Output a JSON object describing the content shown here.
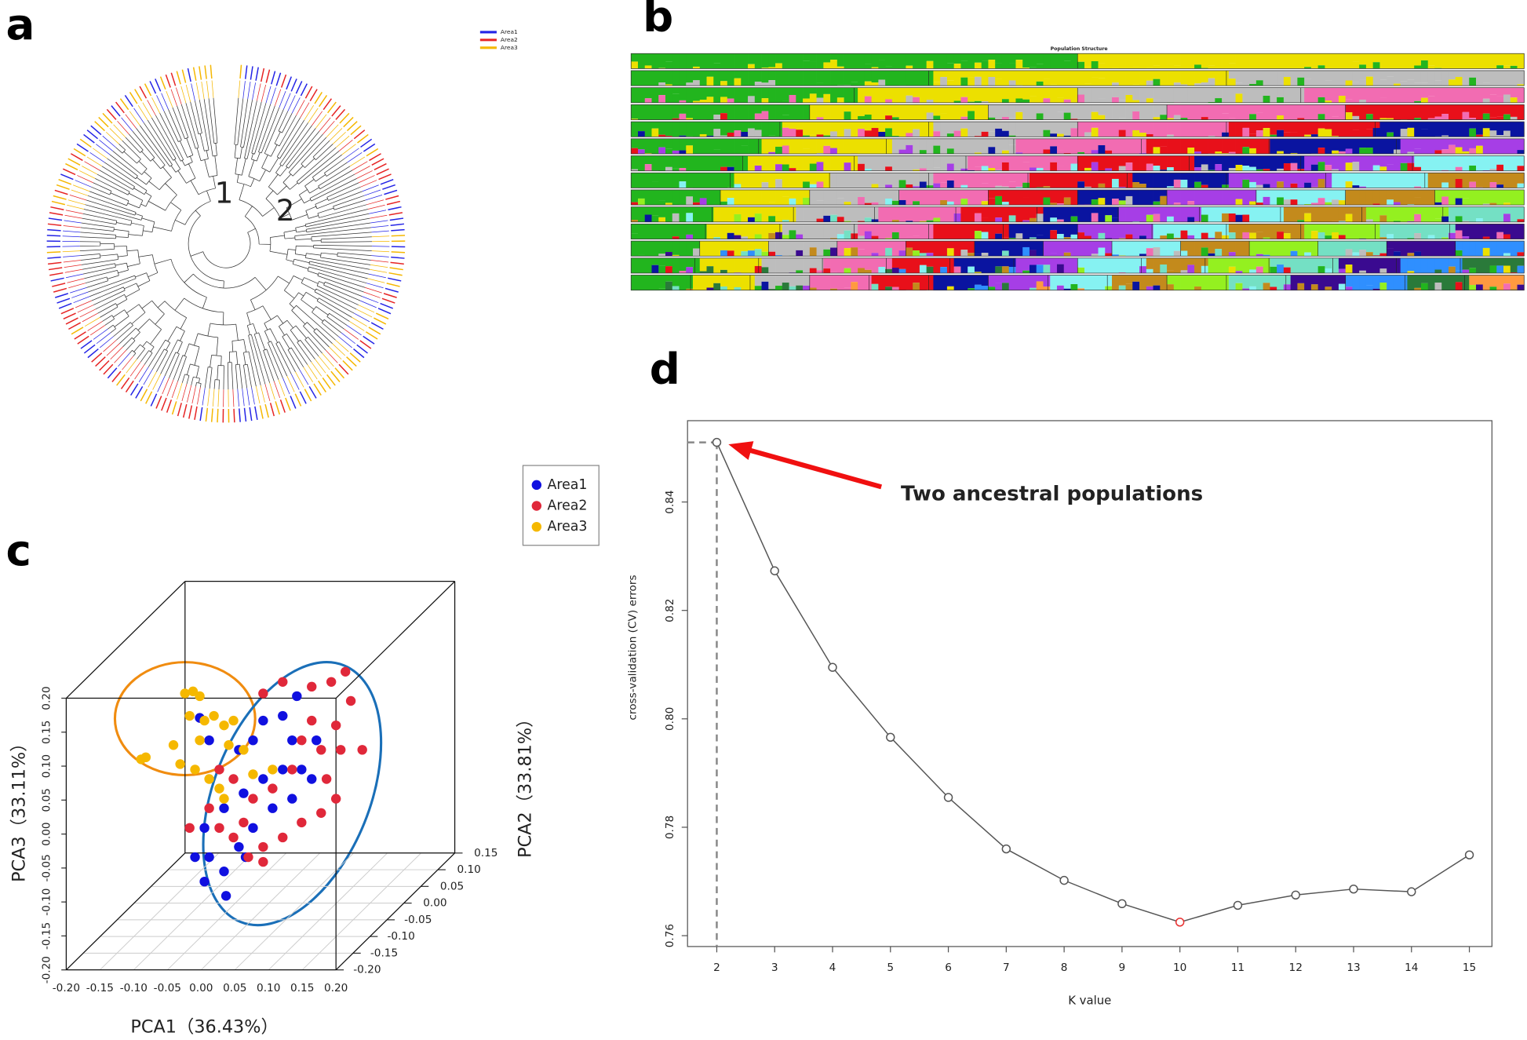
{
  "chart_data": [
    {
      "type": "dendrogram",
      "panel_label": "a",
      "cluster_labels": [
        "1",
        "2"
      ],
      "legend": [
        {
          "name": "Area1",
          "color": "#2323e6"
        },
        {
          "name": "Area2",
          "color": "#e62323"
        },
        {
          "name": "Area3",
          "color": "#f5b700"
        }
      ]
    },
    {
      "type": "structure",
      "panel_label": "b",
      "title": "Population Structure",
      "palette": [
        "#22b51e",
        "#ece000",
        "#bdbdbd",
        "#f26cb2",
        "#e8101a",
        "#0a14a0",
        "#a63ee6",
        "#86f2f2",
        "#c38a1c",
        "#94f020",
        "#74e0c4",
        "#3a0a90",
        "#2f8fff",
        "#2a7a3a",
        "#ff9a40"
      ]
    },
    {
      "type": "scatter3d",
      "panel_label": "c",
      "xlabel": "PCA1（36.43%）",
      "ylabel": "PCA3（33.11%）",
      "zlabel": "PCA2（33.81%）",
      "xlim": [
        -0.2,
        0.2
      ],
      "ylim": [
        -0.2,
        0.2
      ],
      "zlim": [
        -0.2,
        0.15
      ],
      "xticks": [
        {
          "value": -0.2,
          "label": "-0.20"
        },
        -0.15,
        {
          "value": -0.1,
          "label": "-0.10"
        },
        -0.05,
        {
          "value": 0,
          "label": "0.00"
        },
        0.05,
        {
          "value": 0.1,
          "label": "0.10"
        },
        0.15,
        {
          "value": 0.2,
          "label": "0.20"
        }
      ],
      "yticks": [
        {
          "value": -0.2,
          "label": "-0.20"
        },
        -0.15,
        {
          "value": -0.1,
          "label": "-0.10"
        },
        -0.05,
        {
          "value": 0,
          "label": "0.00"
        },
        0.05,
        {
          "value": 0.1,
          "label": "0.10"
        },
        0.15,
        {
          "value": 0.2,
          "label": "0.20"
        }
      ],
      "zticks": [
        {
          "value": -0.2,
          "label": "-0.20"
        },
        -0.15,
        {
          "value": -0.1,
          "label": "-0.10"
        },
        -0.05,
        {
          "value": 0,
          "label": "0.00"
        },
        0.05,
        {
          "value": 0.1,
          "label": "0.10"
        },
        0.15
      ],
      "series": [
        {
          "name": "Area1",
          "color": "#1010e0",
          "x": [
            -0.002,
            0.012,
            0.056,
            0.077,
            0.092,
            0.121,
            0.135,
            0.121,
            0.092,
            0.063,
            0.034,
            0.005,
            0.012,
            0.034,
            0.056,
            0.077,
            0.106,
            0.135,
            0.149,
            0.164,
            0.171,
            0.142,
            0.005,
            0.037,
            0.066,
            -0.009
          ],
          "y": [
            0.171,
            0.138,
            0.124,
            0.138,
            0.167,
            0.174,
            0.138,
            0.095,
            0.081,
            0.06,
            0.038,
            0.009,
            -0.034,
            -0.055,
            -0.019,
            0.009,
            0.038,
            0.052,
            0.095,
            0.081,
            0.138,
            0.203,
            -0.07,
            -0.091,
            -0.034,
            -0.034
          ]
        },
        {
          "name": "Area2",
          "color": "#e0283a",
          "x": [
            0.092,
            0.121,
            0.164,
            0.193,
            0.214,
            0.222,
            0.2,
            0.207,
            0.239,
            0.178,
            0.164,
            0.149,
            0.186,
            0.2,
            0.178,
            0.149,
            0.121,
            0.092,
            0.07,
            0.048,
            0.027,
            -0.017,
            0.012,
            0.048,
            0.027,
            0.077,
            0.106,
            0.135,
            0.092,
            0.063
          ],
          "y": [
            0.207,
            0.224,
            0.217,
            0.224,
            0.239,
            0.196,
            0.16,
            0.124,
            0.124,
            0.124,
            0.167,
            0.138,
            0.081,
            0.052,
            0.031,
            0.017,
            -0.005,
            -0.019,
            -0.034,
            -0.005,
            0.009,
            0.009,
            0.038,
            0.081,
            0.095,
            0.052,
            0.067,
            0.095,
            -0.041,
            0.017
          ]
        },
        {
          "name": "Area3",
          "color": "#f5b800",
          "x": [
            -0.089,
            -0.082,
            -0.041,
            -0.024,
            -0.012,
            -0.002,
            -0.017,
            0.005,
            0.019,
            0.034,
            0.048,
            -0.031,
            -0.009,
            0.012,
            0.027,
            0.041,
            0.063,
            0.077,
            0.106,
            -0.002,
            0.034
          ],
          "y": [
            0.11,
            0.113,
            0.131,
            0.207,
            0.21,
            0.203,
            0.174,
            0.167,
            0.174,
            0.16,
            0.167,
            0.103,
            0.095,
            0.081,
            0.067,
            0.131,
            0.124,
            0.088,
            0.095,
            0.138,
            0.052
          ]
        }
      ]
    },
    {
      "type": "line",
      "panel_label": "d",
      "xlabel": "K value",
      "ylabel": "cross-validation (CV) errors",
      "annotation": "Two ancestral populations",
      "x": [
        2,
        3,
        4,
        5,
        6,
        7,
        8,
        9,
        10,
        11,
        12,
        13,
        14,
        15
      ],
      "values": [
        0.851,
        0.8273,
        0.8095,
        0.7966,
        0.7855,
        0.776,
        0.7702,
        0.7659,
        0.7625,
        0.7656,
        0.7675,
        0.7686,
        0.7681,
        0.7749
      ],
      "point_colors": [
        "#555555",
        "#555555",
        "#555555",
        "#555555",
        "#555555",
        "#555555",
        "#555555",
        "#555555",
        "#e83030",
        "#555555",
        "#555555",
        "#555555",
        "#555555",
        "#555555"
      ],
      "color": "#555555",
      "xlim": [
        1.495,
        15.39
      ],
      "ylim": [
        0.758,
        0.855
      ],
      "xticks": [
        2,
        3,
        4,
        5,
        6,
        7,
        8,
        9,
        10,
        11,
        12,
        13,
        14,
        15
      ],
      "yticks": [
        0.76,
        0.78,
        {
          "value": 0.8,
          "label": "0.80"
        },
        0.82,
        0.84
      ]
    }
  ]
}
